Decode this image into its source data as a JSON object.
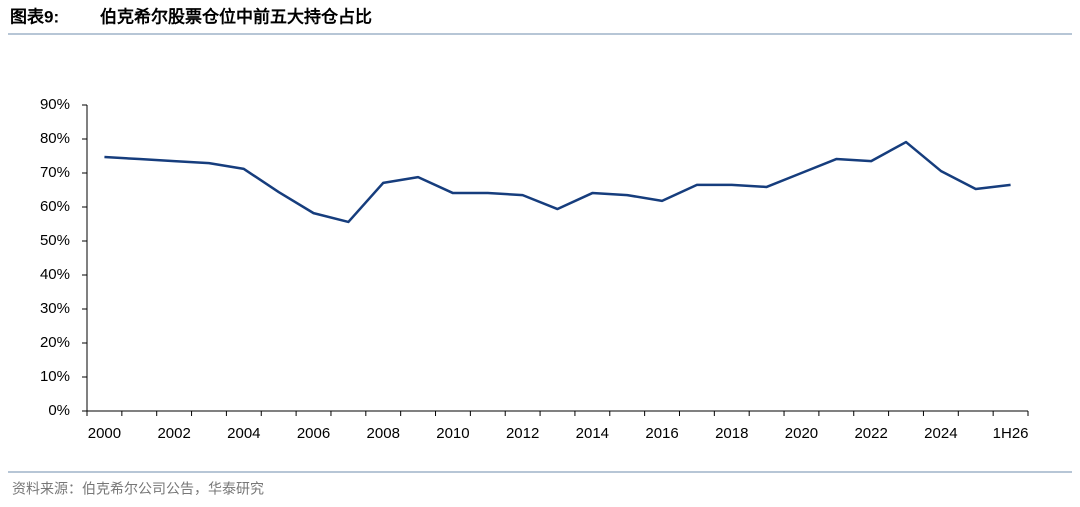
{
  "chart_data": {
    "type": "line",
    "figure_label": "图表9:",
    "title": "伯克希尔股票仓位中前五大持仓占比",
    "source": "资料来源：伯克希尔公司公告，华泰研究",
    "categories": [
      "2000",
      null,
      "2002",
      null,
      "2004",
      null,
      "2006",
      null,
      "2008",
      null,
      "2010",
      null,
      "2012",
      null,
      "2014",
      null,
      "2016",
      null,
      "2018",
      null,
      "2020",
      null,
      "2022",
      null,
      "2024",
      null,
      "1H26"
    ],
    "series": [
      {
        "color": "#163d7d",
        "values": [
          74.7,
          74.1,
          73.5,
          72.9,
          71.2,
          64.4,
          58.2,
          55.6,
          67.1,
          68.8,
          64.1,
          64.1,
          63.5,
          59.4,
          64.1,
          63.5,
          61.8,
          66.5,
          66.5,
          65.9,
          70.0,
          74.1,
          73.5,
          79.1,
          70.6,
          65.3,
          66.5
        ]
      }
    ],
    "ylim": [
      0,
      90
    ],
    "yticks": [
      {
        "value": 0,
        "label": "0%"
      },
      {
        "value": 10,
        "label": "10%"
      },
      {
        "value": 20,
        "label": "20%"
      },
      {
        "value": 30,
        "label": "30%"
      },
      {
        "value": 40,
        "label": "40%"
      },
      {
        "value": 50,
        "label": "50%"
      },
      {
        "value": 60,
        "label": "60%"
      },
      {
        "value": 70,
        "label": "70%"
      },
      {
        "value": 80,
        "label": "80%"
      },
      {
        "value": 90,
        "label": "90%"
      }
    ],
    "grid": false
  }
}
